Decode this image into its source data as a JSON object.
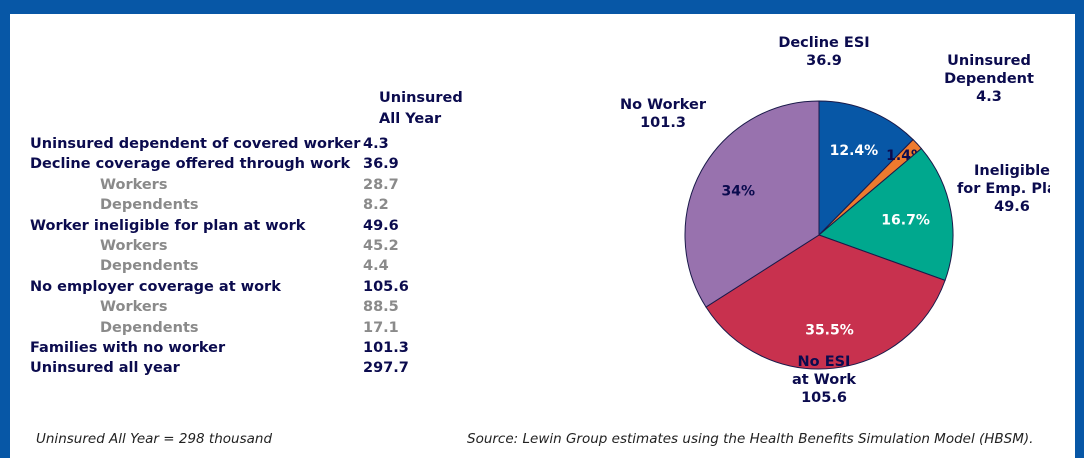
{
  "table": {
    "header_line1": "Uninsured",
    "header_line2": "All Year",
    "rows": [
      {
        "label": "Uninsured dependent of covered worker",
        "value": "4.3",
        "sub": false
      },
      {
        "label": "Decline coverage offered through work",
        "value": "36.9",
        "sub": false
      },
      {
        "label": "Workers",
        "value": "28.7",
        "sub": true
      },
      {
        "label": "Dependents",
        "value": "8.2",
        "sub": true
      },
      {
        "label": "Worker ineligible for plan at work",
        "value": "49.6",
        "sub": false
      },
      {
        "label": "Workers",
        "value": "45.2",
        "sub": true
      },
      {
        "label": "Dependents",
        "value": "4.4",
        "sub": true
      },
      {
        "label": "No employer coverage at work",
        "value": "105.6",
        "sub": false
      },
      {
        "label": "Workers",
        "value": "88.5",
        "sub": true
      },
      {
        "label": "Dependents",
        "value": "17.1",
        "sub": true
      },
      {
        "label": "Families with no worker",
        "value": "101.3",
        "sub": false
      },
      {
        "label": "Uninsured all year",
        "value": "297.7",
        "sub": false
      }
    ]
  },
  "footer": {
    "left": "Uninsured All Year = 298 thousand",
    "right": "Source:  Lewin Group estimates using the Health Benefits Simulation Model (HBSM)."
  },
  "chart_data": {
    "type": "pie",
    "slices": [
      {
        "label_lines": [
          "Decline ESI",
          "36.9"
        ],
        "value": 36.9,
        "percent_label": "12.4%",
        "color": "#0757a6",
        "pct_color": "#ffffff"
      },
      {
        "label_lines": [
          "Uninsured",
          "Dependent",
          "4.3"
        ],
        "value": 4.3,
        "percent_label": "1.4%",
        "color": "#ee7a2e",
        "pct_color": "#0b0b4e"
      },
      {
        "label_lines": [
          "Ineligible",
          "for Emp. Plan",
          "49.6"
        ],
        "value": 49.6,
        "percent_label": "16.7%",
        "color": "#00a88e",
        "pct_color": "#ffffff"
      },
      {
        "label_lines": [
          "No ESI",
          "at Work",
          "105.6"
        ],
        "value": 105.6,
        "percent_label": "35.5%",
        "color": "#c8314e",
        "pct_color": "#ffffff"
      },
      {
        "label_lines": [
          "No Worker",
          "101.3"
        ],
        "value": 101.3,
        "percent_label": "34%",
        "color": "#9872ae",
        "pct_color": "#0b0b4e"
      }
    ],
    "start_angle_deg": 0,
    "direction": "clockwise"
  }
}
